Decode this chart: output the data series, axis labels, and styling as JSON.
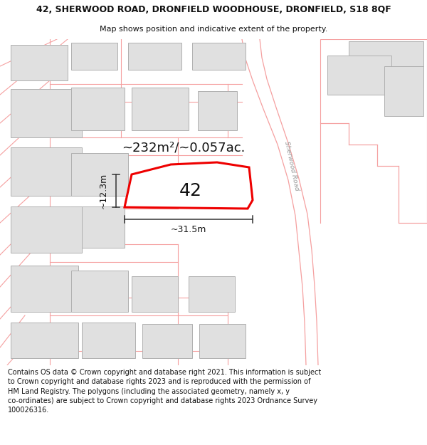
{
  "title_line1": "42, SHERWOOD ROAD, DRONFIELD WOODHOUSE, DRONFIELD, S18 8QF",
  "title_line2": "Map shows position and indicative extent of the property.",
  "area_label": "~232m²/~0.057ac.",
  "number_label": "42",
  "dim_width": "~31.5m",
  "dim_height": "~12.3m",
  "footer_text": "Contains OS data © Crown copyright and database right 2021. This information is subject to Crown copyright and database rights 2023 and is reproduced with the permission of HM Land Registry. The polygons (including the associated geometry, namely x, y co-ordinates) are subject to Crown copyright and database rights 2023 Ordnance Survey 100026316.",
  "bg_color": "#ffffff",
  "map_bg": "#ffffff",
  "plot_fill": "#ffffff",
  "plot_edge": "#ee0000",
  "road_color": "#f5a0a0",
  "building_fill": "#e0e0e0",
  "building_edge": "#b0b0b0",
  "dim_line_color": "#333333",
  "text_color": "#111111",
  "road_label_color": "#999999",
  "title_fontsize": 9.0,
  "subtitle_fontsize": 8.0,
  "footer_fontsize": 7.0,
  "area_fontsize": 13,
  "number_fontsize": 18,
  "dim_fontsize": 9
}
